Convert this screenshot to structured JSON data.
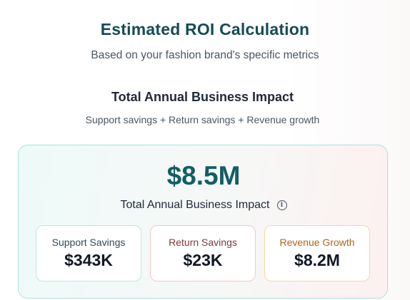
{
  "header": {
    "title": "Estimated ROI Calculation",
    "subtitle": "Based on your fashion brand's specific metrics"
  },
  "section": {
    "title": "Total Annual Business Impact",
    "formula": "Support savings + Return savings + Revenue growth"
  },
  "summary": {
    "total_value": "$8.5M",
    "total_label": "Total Annual Business Impact",
    "info_icon": "info-icon",
    "metrics": [
      {
        "label": "Support Savings",
        "value": "$343K",
        "accent": "#bfe7e2"
      },
      {
        "label": "Return Savings",
        "value": "$23K",
        "accent": "#f1c8c8"
      },
      {
        "label": "Revenue Growth",
        "value": "$8.2M",
        "accent": "#f4d8a6"
      }
    ]
  },
  "colors": {
    "title": "#164b55",
    "total_value": "#125e66",
    "card_border": "#a9e2de"
  }
}
